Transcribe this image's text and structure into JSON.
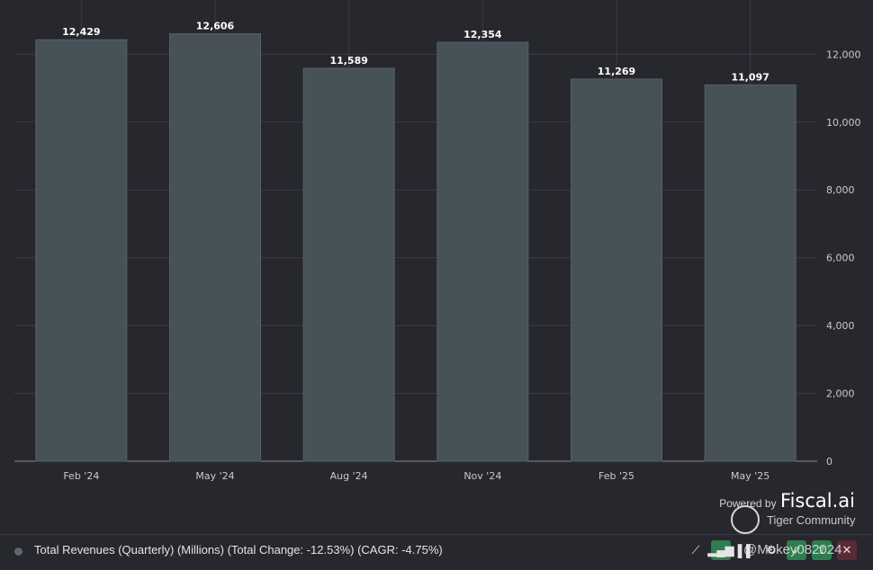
{
  "chart_data": {
    "type": "bar",
    "categories": [
      "Feb '24",
      "May '24",
      "Aug '24",
      "Nov '24",
      "Feb '25",
      "May '25"
    ],
    "values": [
      12429,
      12606,
      11589,
      12354,
      11269,
      11097
    ],
    "data_labels": [
      "12,429",
      "12,606",
      "11,589",
      "12,354",
      "11,269",
      "11,097"
    ],
    "y_ticks": [
      "0",
      "2,000",
      "4,000",
      "6,000",
      "8,000",
      "10,000",
      "12,000"
    ],
    "ylim": [
      0,
      13600
    ],
    "grid": true,
    "y_axis_position": "right",
    "bar_color": "#475158"
  },
  "branding": {
    "powered_by": "Powered by",
    "brand": "Fiscal.ai",
    "community": "Tiger Community",
    "watermark": "@Mokey082024"
  },
  "legend": {
    "text": "Total Revenues (Quarterly) (Millions) (Total Change: -12.53%) (CAGR: -4.75%)",
    "dot_color": "#5b6670"
  },
  "toolbar": {
    "icons": [
      "line-chart-icon",
      "bar-chart-icon",
      "grouped-bar-icon",
      "settings-icon",
      "rocket-icon",
      "share-icon",
      "close-icon"
    ]
  }
}
